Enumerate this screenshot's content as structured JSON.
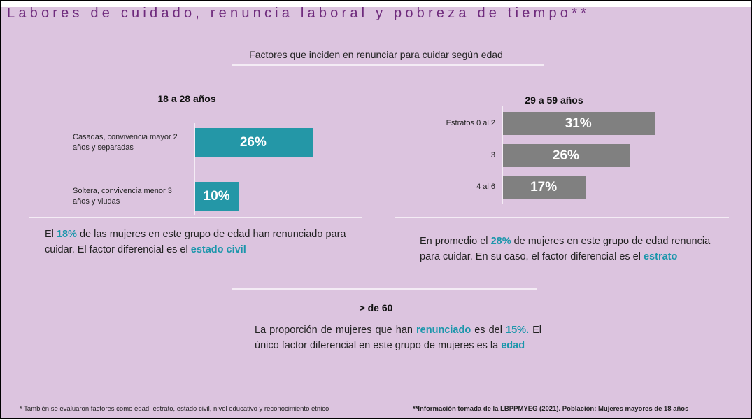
{
  "header_caption": "Factores que inciden en renunciar para cuidar según edad",
  "title": "Labores de cuidado, renuncia laboral y pobreza de tiempo**",
  "subtitle": "Factores que inciden en renunciar para cuidar según edad",
  "chart_data": [
    {
      "type": "bar",
      "orientation": "horizontal",
      "title": "18 a 28 años",
      "categories": [
        "Casadas, convivencia mayor 2 años y separadas",
        "Soltera, convivencia menor 3 años y viudas"
      ],
      "values": [
        26,
        10
      ],
      "value_labels": [
        "26%",
        "10%"
      ],
      "color": "#2497a7"
    },
    {
      "type": "bar",
      "orientation": "horizontal",
      "title": "29 a 59 años",
      "categories": [
        "Estratos 0 al 2",
        "3",
        "4 al 6"
      ],
      "values": [
        31,
        26,
        17
      ],
      "value_labels": [
        "31%",
        "26%",
        "17%"
      ],
      "color": "#808080"
    }
  ],
  "paragraphs": [
    [
      {
        "text": "El "
      },
      {
        "text": "18%",
        "emphasis": true
      },
      {
        "text": " de las mujeres en este grupo de edad han renunciado para cuidar. El factor diferencial es el "
      },
      {
        "text": "estado civil",
        "emphasis": true
      }
    ],
    [
      {
        "text": "En promedio el "
      },
      {
        "text": "28%",
        "emphasis": true
      },
      {
        "text": " de mujeres en este grupo de edad renuncia para cuidar. En su caso, el factor diferencial es el "
      },
      {
        "text": "estrato",
        "emphasis": true
      }
    ],
    [
      {
        "text": "La proporción de mujeres que han "
      },
      {
        "text": "renunciado",
        "emphasis": true
      },
      {
        "text": " es del "
      },
      {
        "text": "15%.",
        "emphasis": true
      },
      {
        "text": " El único factor diferencial en este grupo de mujeres es la "
      },
      {
        "text": "edad",
        "emphasis": true
      }
    ]
  ],
  "section_title": "> de 60",
  "footnotes": [
    "* También se evaluaron factores como edad, estrato, estado civil, nivel educativo y reconocimiento étnico",
    "**Información tomada de la LBPPMYEG (2021). Población: Mujeres mayores de 18 años"
  ]
}
